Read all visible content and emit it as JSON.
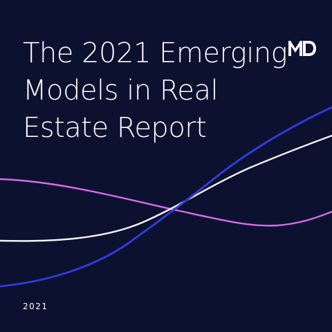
{
  "cover": {
    "title_lines": [
      "The 2021 Emerging",
      "Models in Real",
      "Estate Report"
    ],
    "year": "2021",
    "logo_icon": "md-logo-icon"
  },
  "colors": {
    "background": "#0d1130",
    "text": "#ffffff",
    "curve_blue": "#2f3bd6",
    "curve_white": "#f4f3f7",
    "curve_pink": "#d86de8"
  }
}
